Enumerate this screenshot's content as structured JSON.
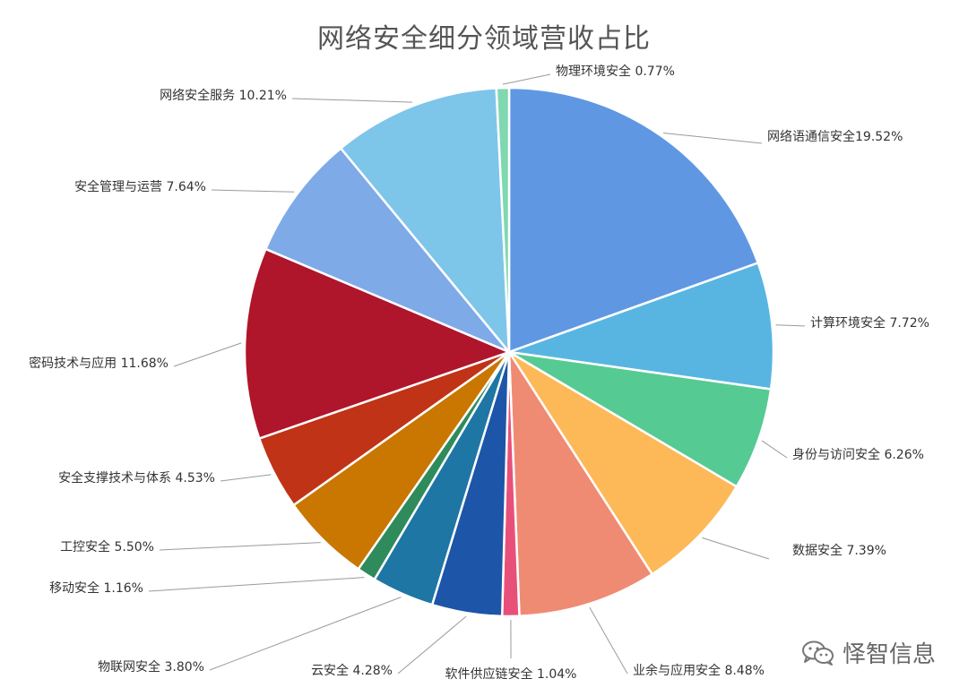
{
  "chart_data": {
    "type": "pie",
    "title": "网络安全细分领域营收占比",
    "unit": "%",
    "slices": [
      {
        "label": "网络语通信安全19.52%",
        "value": 19.52,
        "color": "#6097E3"
      },
      {
        "label": "计算环境安全 7.72%",
        "value": 7.72,
        "color": "#58B5E2"
      },
      {
        "label": "身份与访问安全 6.26%",
        "value": 6.26,
        "color": "#56CA93"
      },
      {
        "label": "数据安全 7.39%",
        "value": 7.39,
        "color": "#FDB958"
      },
      {
        "label": "业余与应用安全 8.48%",
        "value": 8.48,
        "color": "#F08B73"
      },
      {
        "label": "软件供应链安全 1.04%",
        "value": 1.04,
        "color": "#E8507A"
      },
      {
        "label": "云安全 4.28%",
        "value": 4.28,
        "color": "#1D55A8"
      },
      {
        "label": "物联网安全 3.80%",
        "value": 3.8,
        "color": "#1E76A5"
      },
      {
        "label": "移动安全 1.16%",
        "value": 1.16,
        "color": "#2F8B5B"
      },
      {
        "label": "工控安全 5.50%",
        "value": 5.5,
        "color": "#C97700"
      },
      {
        "label": "安全支撑技术与体系 4.53%",
        "value": 4.53,
        "color": "#C03316"
      },
      {
        "label": "密码技术与应用 11.68%",
        "value": 11.68,
        "color": "#AF152B"
      },
      {
        "label": "安全管理与运营 7.64%",
        "value": 7.64,
        "color": "#7FAAE8"
      },
      {
        "label": "网络安全服务 10.21%",
        "value": 10.21,
        "color": "#7EC5EA"
      },
      {
        "label": "物理环境安全 0.77%",
        "value": 0.77,
        "color": "#7FD8B0"
      }
    ],
    "legend": "none"
  },
  "watermark": {
    "text": "怿智信息",
    "icon": "wechat-icon"
  }
}
